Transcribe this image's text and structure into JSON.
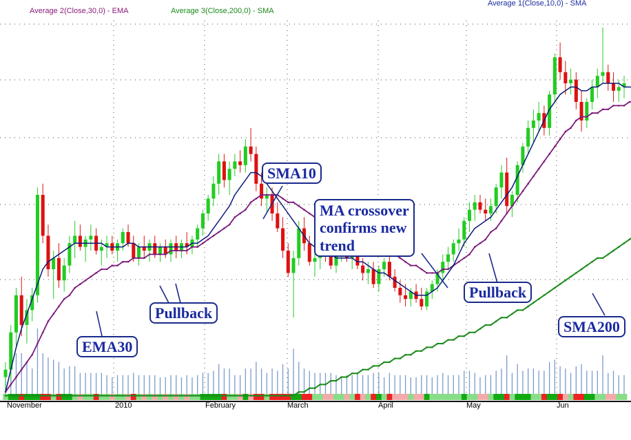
{
  "legend": {
    "ema30": "Average 2(Close,30,0) - EMA",
    "sma200": "Average 3(Close,200,0) - SMA",
    "sma10": "Average 1(Close,10,0) - SMA"
  },
  "annotations": {
    "sma10": "SMA10",
    "crossover_line1": "MA crossover",
    "crossover_line2": "confirms new",
    "crossover_line3": "trend",
    "pullback_left": "Pullback",
    "pullback_right": "Pullback",
    "ema30": "EMA30",
    "sma200": "SMA200"
  },
  "colors": {
    "up": "#22cc22",
    "down": "#dd1111",
    "sma10": "#0a1a7a",
    "ema30": "#7a1a7a",
    "sma200": "#1a8a1a",
    "volume": "#7a9ac8",
    "callout": "#1a2a8c"
  },
  "chart_data": {
    "type": "candlestick",
    "title": "",
    "xlabel": "",
    "ylabel": "",
    "x_labels": [
      "November",
      "2010",
      "February",
      "March",
      "April",
      "May",
      "Jun"
    ],
    "y_range": [
      0,
      100
    ],
    "grid": true,
    "candles": [
      {
        "o": 6,
        "h": 10,
        "l": 2,
        "c": 8
      },
      {
        "o": 8,
        "h": 20,
        "l": 5,
        "c": 18
      },
      {
        "o": 18,
        "h": 30,
        "l": 14,
        "c": 28
      },
      {
        "o": 28,
        "h": 33,
        "l": 17,
        "c": 20
      },
      {
        "o": 20,
        "h": 27,
        "l": 15,
        "c": 24
      },
      {
        "o": 24,
        "h": 30,
        "l": 21,
        "c": 28
      },
      {
        "o": 28,
        "h": 57,
        "l": 26,
        "c": 55
      },
      {
        "o": 55,
        "h": 58,
        "l": 42,
        "c": 44
      },
      {
        "o": 44,
        "h": 47,
        "l": 33,
        "c": 35
      },
      {
        "o": 35,
        "h": 40,
        "l": 27,
        "c": 38
      },
      {
        "o": 38,
        "h": 42,
        "l": 30,
        "c": 32
      },
      {
        "o": 32,
        "h": 38,
        "l": 29,
        "c": 36
      },
      {
        "o": 36,
        "h": 44,
        "l": 34,
        "c": 42
      },
      {
        "o": 42,
        "h": 48,
        "l": 38,
        "c": 44
      },
      {
        "o": 44,
        "h": 47,
        "l": 40,
        "c": 41
      },
      {
        "o": 41,
        "h": 44,
        "l": 37,
        "c": 43
      },
      {
        "o": 43,
        "h": 47,
        "l": 40,
        "c": 44
      },
      {
        "o": 44,
        "h": 46,
        "l": 39,
        "c": 40
      },
      {
        "o": 40,
        "h": 43,
        "l": 36,
        "c": 41
      },
      {
        "o": 41,
        "h": 44,
        "l": 38,
        "c": 42
      },
      {
        "o": 42,
        "h": 44,
        "l": 39,
        "c": 40
      },
      {
        "o": 40,
        "h": 43,
        "l": 37,
        "c": 42
      },
      {
        "o": 42,
        "h": 46,
        "l": 40,
        "c": 45
      },
      {
        "o": 45,
        "h": 47,
        "l": 41,
        "c": 42
      },
      {
        "o": 42,
        "h": 44,
        "l": 37,
        "c": 38
      },
      {
        "o": 38,
        "h": 42,
        "l": 36,
        "c": 41
      },
      {
        "o": 41,
        "h": 44,
        "l": 38,
        "c": 40
      },
      {
        "o": 40,
        "h": 43,
        "l": 37,
        "c": 42
      },
      {
        "o": 42,
        "h": 44,
        "l": 38,
        "c": 39
      },
      {
        "o": 39,
        "h": 42,
        "l": 37,
        "c": 41
      },
      {
        "o": 41,
        "h": 43,
        "l": 38,
        "c": 39
      },
      {
        "o": 39,
        "h": 43,
        "l": 37,
        "c": 42
      },
      {
        "o": 42,
        "h": 44,
        "l": 38,
        "c": 40
      },
      {
        "o": 40,
        "h": 43,
        "l": 38,
        "c": 42
      },
      {
        "o": 42,
        "h": 45,
        "l": 39,
        "c": 41
      },
      {
        "o": 41,
        "h": 44,
        "l": 39,
        "c": 43
      },
      {
        "o": 43,
        "h": 47,
        "l": 41,
        "c": 46
      },
      {
        "o": 46,
        "h": 51,
        "l": 44,
        "c": 50
      },
      {
        "o": 50,
        "h": 55,
        "l": 48,
        "c": 54
      },
      {
        "o": 54,
        "h": 60,
        "l": 52,
        "c": 58
      },
      {
        "o": 58,
        "h": 66,
        "l": 55,
        "c": 64
      },
      {
        "o": 64,
        "h": 66,
        "l": 57,
        "c": 59
      },
      {
        "o": 59,
        "h": 64,
        "l": 55,
        "c": 62
      },
      {
        "o": 62,
        "h": 66,
        "l": 60,
        "c": 64
      },
      {
        "o": 64,
        "h": 67,
        "l": 61,
        "c": 63
      },
      {
        "o": 63,
        "h": 70,
        "l": 61,
        "c": 68
      },
      {
        "o": 68,
        "h": 73,
        "l": 64,
        "c": 66
      },
      {
        "o": 66,
        "h": 68,
        "l": 56,
        "c": 58
      },
      {
        "o": 58,
        "h": 61,
        "l": 52,
        "c": 54
      },
      {
        "o": 54,
        "h": 57,
        "l": 50,
        "c": 55
      },
      {
        "o": 55,
        "h": 57,
        "l": 48,
        "c": 50
      },
      {
        "o": 50,
        "h": 53,
        "l": 45,
        "c": 46
      },
      {
        "o": 46,
        "h": 49,
        "l": 38,
        "c": 40
      },
      {
        "o": 40,
        "h": 42,
        "l": 33,
        "c": 34
      },
      {
        "o": 34,
        "h": 40,
        "l": 22,
        "c": 38
      },
      {
        "o": 38,
        "h": 48,
        "l": 36,
        "c": 46
      },
      {
        "o": 46,
        "h": 49,
        "l": 40,
        "c": 42
      },
      {
        "o": 42,
        "h": 44,
        "l": 36,
        "c": 37
      },
      {
        "o": 37,
        "h": 40,
        "l": 33,
        "c": 38
      },
      {
        "o": 38,
        "h": 42,
        "l": 35,
        "c": 41
      },
      {
        "o": 41,
        "h": 44,
        "l": 37,
        "c": 39
      },
      {
        "o": 39,
        "h": 42,
        "l": 35,
        "c": 36
      },
      {
        "o": 36,
        "h": 40,
        "l": 34,
        "c": 39
      },
      {
        "o": 39,
        "h": 42,
        "l": 37,
        "c": 41
      },
      {
        "o": 41,
        "h": 43,
        "l": 37,
        "c": 38
      },
      {
        "o": 38,
        "h": 41,
        "l": 35,
        "c": 40
      },
      {
        "o": 40,
        "h": 42,
        "l": 35,
        "c": 36
      },
      {
        "o": 36,
        "h": 38,
        "l": 32,
        "c": 34
      },
      {
        "o": 34,
        "h": 37,
        "l": 31,
        "c": 35
      },
      {
        "o": 35,
        "h": 37,
        "l": 30,
        "c": 31
      },
      {
        "o": 31,
        "h": 36,
        "l": 29,
        "c": 35
      },
      {
        "o": 35,
        "h": 38,
        "l": 33,
        "c": 37
      },
      {
        "o": 37,
        "h": 39,
        "l": 32,
        "c": 33
      },
      {
        "o": 33,
        "h": 35,
        "l": 29,
        "c": 30
      },
      {
        "o": 30,
        "h": 32,
        "l": 26,
        "c": 28
      },
      {
        "o": 28,
        "h": 31,
        "l": 25,
        "c": 27
      },
      {
        "o": 27,
        "h": 30,
        "l": 25,
        "c": 29
      },
      {
        "o": 29,
        "h": 31,
        "l": 26,
        "c": 27
      },
      {
        "o": 27,
        "h": 30,
        "l": 24,
        "c": 25
      },
      {
        "o": 25,
        "h": 30,
        "l": 24,
        "c": 29
      },
      {
        "o": 29,
        "h": 32,
        "l": 27,
        "c": 31
      },
      {
        "o": 31,
        "h": 35,
        "l": 29,
        "c": 34
      },
      {
        "o": 34,
        "h": 39,
        "l": 32,
        "c": 37
      },
      {
        "o": 37,
        "h": 41,
        "l": 35,
        "c": 39
      },
      {
        "o": 39,
        "h": 43,
        "l": 37,
        "c": 42
      },
      {
        "o": 42,
        "h": 46,
        "l": 40,
        "c": 43
      },
      {
        "o": 43,
        "h": 49,
        "l": 41,
        "c": 48
      },
      {
        "o": 48,
        "h": 53,
        "l": 45,
        "c": 51
      },
      {
        "o": 51,
        "h": 55,
        "l": 48,
        "c": 53
      },
      {
        "o": 53,
        "h": 55,
        "l": 50,
        "c": 51
      },
      {
        "o": 51,
        "h": 54,
        "l": 48,
        "c": 50
      },
      {
        "o": 50,
        "h": 54,
        "l": 48,
        "c": 52
      },
      {
        "o": 52,
        "h": 58,
        "l": 50,
        "c": 57
      },
      {
        "o": 57,
        "h": 63,
        "l": 54,
        "c": 61
      },
      {
        "o": 61,
        "h": 65,
        "l": 50,
        "c": 52
      },
      {
        "o": 52,
        "h": 56,
        "l": 49,
        "c": 55
      },
      {
        "o": 55,
        "h": 64,
        "l": 53,
        "c": 63
      },
      {
        "o": 63,
        "h": 69,
        "l": 61,
        "c": 68
      },
      {
        "o": 68,
        "h": 75,
        "l": 66,
        "c": 73
      },
      {
        "o": 73,
        "h": 78,
        "l": 69,
        "c": 75
      },
      {
        "o": 75,
        "h": 80,
        "l": 72,
        "c": 77
      },
      {
        "o": 77,
        "h": 79,
        "l": 71,
        "c": 73
      },
      {
        "o": 73,
        "h": 83,
        "l": 71,
        "c": 82
      },
      {
        "o": 82,
        "h": 93,
        "l": 80,
        "c": 92
      },
      {
        "o": 92,
        "h": 96,
        "l": 86,
        "c": 88
      },
      {
        "o": 88,
        "h": 91,
        "l": 82,
        "c": 85
      },
      {
        "o": 85,
        "h": 89,
        "l": 82,
        "c": 86
      },
      {
        "o": 86,
        "h": 88,
        "l": 78,
        "c": 80
      },
      {
        "o": 80,
        "h": 83,
        "l": 72,
        "c": 75
      },
      {
        "o": 75,
        "h": 81,
        "l": 73,
        "c": 80
      },
      {
        "o": 80,
        "h": 86,
        "l": 78,
        "c": 84
      },
      {
        "o": 84,
        "h": 89,
        "l": 81,
        "c": 87
      },
      {
        "o": 87,
        "h": 100,
        "l": 85,
        "c": 88
      },
      {
        "o": 88,
        "h": 90,
        "l": 83,
        "c": 85
      },
      {
        "o": 85,
        "h": 88,
        "l": 80,
        "c": 83
      },
      {
        "o": 83,
        "h": 86,
        "l": 80,
        "c": 84
      },
      {
        "o": 84,
        "h": 87,
        "l": 81,
        "c": 85
      }
    ],
    "sma10": [
      2,
      8,
      14,
      19,
      23,
      27,
      31,
      35,
      37,
      38,
      39,
      40,
      41,
      42,
      42,
      42,
      42,
      42,
      42,
      41,
      41,
      41,
      41,
      42,
      42,
      41,
      41,
      41,
      41,
      41,
      41,
      41,
      41,
      41,
      41,
      42,
      42,
      43,
      44,
      46,
      48,
      50,
      52,
      55,
      57,
      59,
      61,
      61,
      60,
      58,
      56,
      54,
      52,
      50,
      48,
      46,
      44,
      42,
      41,
      40,
      39,
      39,
      38,
      38,
      38,
      38,
      37,
      37,
      36,
      35,
      34,
      34,
      33,
      32,
      31,
      30,
      29,
      28,
      28,
      28,
      29,
      30,
      32,
      34,
      36,
      39,
      42,
      44,
      46,
      47,
      48,
      49,
      51,
      53,
      55,
      57,
      60,
      63,
      66,
      69,
      72,
      75,
      78,
      80,
      82,
      83,
      84,
      84,
      83,
      83,
      84,
      84,
      85,
      85,
      85,
      85,
      84,
      84,
      84
    ],
    "ema30": [
      2,
      4,
      6,
      8,
      10,
      12,
      15,
      18,
      21,
      23,
      25,
      27,
      28,
      30,
      31,
      32,
      33,
      34,
      35,
      35,
      36,
      36,
      37,
      37,
      38,
      38,
      38,
      39,
      39,
      39,
      39,
      40,
      40,
      40,
      40,
      41,
      41,
      42,
      43,
      44,
      45,
      46,
      47,
      49,
      50,
      51,
      53,
      54,
      55,
      55,
      55,
      55,
      54,
      53,
      53,
      52,
      51,
      50,
      49,
      48,
      48,
      47,
      47,
      46,
      45,
      45,
      44,
      43,
      43,
      42,
      41,
      41,
      40,
      39,
      38,
      37,
      36,
      36,
      35,
      34,
      34,
      34,
      35,
      35,
      36,
      37,
      38,
      39,
      41,
      42,
      43,
      45,
      46,
      48,
      50,
      52,
      54,
      56,
      58,
      60,
      62,
      64,
      66,
      68,
      70,
      72,
      73,
      75,
      76,
      76,
      77,
      77,
      78,
      78,
      79,
      79,
      79,
      80,
      80
    ],
    "sma200": [
      1,
      1,
      1,
      1,
      1,
      1,
      1,
      1,
      1,
      1,
      1,
      1,
      1,
      1,
      1,
      1,
      1,
      1,
      1,
      1,
      1,
      1,
      1,
      1,
      1,
      1,
      1,
      1,
      1,
      1,
      1,
      1,
      1,
      1,
      1,
      1,
      1,
      1,
      1,
      1,
      1,
      1,
      1,
      1,
      1,
      1,
      1,
      1,
      1,
      1,
      1,
      1,
      1,
      1,
      1,
      2,
      2,
      3,
      3,
      4,
      4,
      5,
      5,
      6,
      6,
      7,
      7,
      8,
      8,
      9,
      9,
      10,
      10,
      11,
      11,
      12,
      12,
      13,
      13,
      14,
      14,
      15,
      15,
      16,
      16,
      17,
      17,
      18,
      18,
      19,
      20,
      20,
      21,
      22,
      22,
      23,
      24,
      24,
      25,
      26,
      27,
      28,
      29,
      30,
      31,
      32,
      33,
      34,
      35,
      36,
      37,
      38,
      38,
      39,
      40,
      41,
      42,
      43,
      44
    ]
  }
}
